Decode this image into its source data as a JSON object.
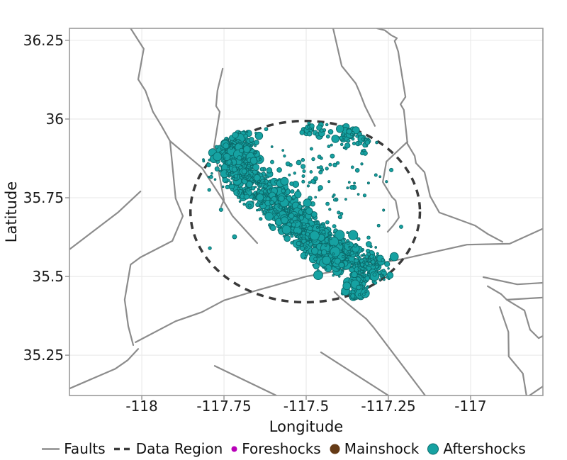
{
  "chart_data": {
    "type": "scatter",
    "title": "",
    "xlabel": "Longitude",
    "ylabel": "Latitude",
    "xlim": [
      -118.22,
      -116.78
    ],
    "ylim": [
      35.122,
      36.288
    ],
    "grid": true,
    "legend_position": "bottom",
    "xticks": {
      "values": [
        -118,
        -117.75,
        -117.5,
        -117.25,
        -117
      ],
      "labels": [
        "-118",
        "-117.75",
        "-117.5",
        "-117.25",
        "-117"
      ]
    },
    "yticks": {
      "values": [
        36.25,
        36,
        35.75,
        35.5,
        35.25
      ],
      "labels": [
        "36.25",
        "36",
        "35.75",
        "35.5",
        "35.25"
      ]
    },
    "styles": {
      "fault_color": "#8c8c8c",
      "fault_width": 2.2,
      "grid_color": "#ececec",
      "spine_color": "#9a9a9a",
      "region_color": "#3a3a3a",
      "aftershock_fill": "#16a2a2",
      "aftershock_stroke": "#0b6a6a",
      "foreshock_color": "#b800b8",
      "mainshock_color": "#653a16",
      "tick_label_color": "#1b1b1b"
    },
    "data_region": {
      "label": "Data Region",
      "center": [
        -117.503,
        35.706
      ],
      "radius_lon": 0.349,
      "radius_lat": 0.288,
      "dash": [
        10,
        8
      ],
      "stroke_width": 3.5
    },
    "faults": [
      {
        "id": "fault-1",
        "points": [
          [
            -118.034,
            36.288
          ],
          [
            -117.994,
            36.223
          ],
          [
            -118.011,
            36.126
          ],
          [
            -117.989,
            36.09
          ],
          [
            -117.966,
            36.023
          ],
          [
            -117.94,
            35.978
          ],
          [
            -117.914,
            35.93
          ],
          [
            -117.897,
            35.748
          ],
          [
            -117.875,
            35.692
          ],
          [
            -117.907,
            35.613
          ],
          [
            -118.004,
            35.561
          ],
          [
            -118.034,
            35.538
          ],
          [
            -118.052,
            35.426
          ],
          [
            -118.041,
            35.342
          ],
          [
            -118.026,
            35.282
          ]
        ]
      },
      {
        "id": "fault-2",
        "points": [
          [
            -117.914,
            35.93
          ],
          [
            -117.817,
            35.845
          ],
          [
            -117.752,
            35.741
          ],
          [
            -117.724,
            35.692
          ],
          [
            -117.649,
            35.606
          ]
        ]
      },
      {
        "id": "fault-3",
        "points": [
          [
            -117.754,
            36.16
          ],
          [
            -117.77,
            36.09
          ],
          [
            -117.774,
            36.041
          ],
          [
            -117.763,
            36.023
          ],
          [
            -117.78,
            35.912
          ],
          [
            -117.767,
            35.838
          ],
          [
            -117.75,
            35.743
          ],
          [
            -117.759,
            35.721
          ]
        ]
      },
      {
        "id": "fault-4",
        "points": [
          [
            -117.418,
            36.288
          ],
          [
            -117.392,
            36.169
          ],
          [
            -117.349,
            36.113
          ],
          [
            -117.338,
            36.086
          ],
          [
            -117.321,
            36.041
          ],
          [
            -117.291,
            35.978
          ]
        ]
      },
      {
        "id": "fault-5",
        "points": [
          [
            -117.284,
            36.288
          ],
          [
            -117.261,
            36.282
          ],
          [
            -117.241,
            36.266
          ],
          [
            -117.224,
            36.257
          ],
          [
            -117.231,
            36.248
          ],
          [
            -117.22,
            36.214
          ],
          [
            -117.216,
            36.187
          ],
          [
            -117.198,
            36.07
          ],
          [
            -117.213,
            36.047
          ],
          [
            -117.203,
            36.029
          ],
          [
            -117.194,
            35.944
          ],
          [
            -117.192,
            35.921
          ],
          [
            -117.17,
            35.883
          ],
          [
            -117.166,
            35.86
          ],
          [
            -117.14,
            35.831
          ],
          [
            -117.123,
            35.755
          ],
          [
            -117.095,
            35.703
          ],
          [
            -117.052,
            35.687
          ],
          [
            -116.987,
            35.662
          ],
          [
            -116.948,
            35.635
          ],
          [
            -116.903,
            35.61
          ]
        ]
      },
      {
        "id": "fault-6",
        "points": [
          [
            -117.192,
            35.928
          ],
          [
            -117.256,
            35.865
          ],
          [
            -117.267,
            35.8
          ],
          [
            -117.239,
            35.752
          ],
          [
            -117.228,
            35.741
          ],
          [
            -117.218,
            35.687
          ],
          [
            -117.235,
            35.662
          ],
          [
            -117.252,
            35.642
          ]
        ]
      },
      {
        "id": "fault-7",
        "points": [
          [
            -118.004,
            35.77
          ],
          [
            -118.073,
            35.703
          ],
          [
            -118.22,
            35.586
          ]
        ]
      },
      {
        "id": "fault-8",
        "points": [
          [
            -118.019,
            35.291
          ],
          [
            -117.897,
            35.358
          ],
          [
            -117.817,
            35.387
          ],
          [
            -117.75,
            35.424
          ],
          [
            -117.653,
            35.455
          ],
          [
            -117.5,
            35.5
          ],
          [
            -117.205,
            35.556
          ],
          [
            -117.011,
            35.601
          ],
          [
            -116.881,
            35.604
          ],
          [
            -116.782,
            35.651
          ]
        ]
      },
      {
        "id": "fault-9",
        "points": [
          [
            -118.011,
            35.27
          ],
          [
            -118.043,
            35.234
          ],
          [
            -118.08,
            35.207
          ],
          [
            -118.22,
            35.144
          ]
        ]
      },
      {
        "id": "fault-10",
        "points": [
          [
            -117.778,
            35.216
          ],
          [
            -117.591,
            35.122
          ]
        ]
      },
      {
        "id": "fault-11",
        "points": [
          [
            -117.414,
            35.451
          ],
          [
            -117.397,
            35.433
          ],
          [
            -117.317,
            35.365
          ],
          [
            -117.295,
            35.338
          ],
          [
            -117.138,
            35.122
          ]
        ]
      },
      {
        "id": "fault-12",
        "points": [
          [
            -117.455,
            35.259
          ],
          [
            -117.25,
            35.122
          ]
        ]
      },
      {
        "id": "fault-13",
        "points": [
          [
            -116.961,
            35.498
          ],
          [
            -116.858,
            35.475
          ],
          [
            -116.78,
            35.48
          ]
        ]
      },
      {
        "id": "fault-14",
        "points": [
          [
            -116.948,
            35.469
          ],
          [
            -116.907,
            35.444
          ],
          [
            -116.89,
            35.426
          ],
          [
            -116.78,
            35.433
          ]
        ]
      },
      {
        "id": "fault-15",
        "points": [
          [
            -116.89,
            35.426
          ],
          [
            -116.836,
            35.392
          ],
          [
            -116.819,
            35.331
          ],
          [
            -116.793,
            35.304
          ],
          [
            -116.78,
            35.311
          ]
        ]
      },
      {
        "id": "fault-16",
        "points": [
          [
            -116.911,
            35.403
          ],
          [
            -116.885,
            35.324
          ],
          [
            -116.884,
            35.246
          ],
          [
            -116.841,
            35.192
          ],
          [
            -116.83,
            35.122
          ]
        ]
      },
      {
        "id": "fault-17",
        "points": [
          [
            -116.78,
            35.151
          ],
          [
            -116.821,
            35.122
          ]
        ]
      }
    ],
    "aftershocks": {
      "seed": 42,
      "note": "dense NW-SE trending aftershock band inside the data region; rendered from these cluster parameters",
      "clusters": [
        {
          "lon": -117.437,
          "lat": 35.82,
          "sx": 0.103,
          "sy": 0.086,
          "n": 100,
          "rmin": 1.4,
          "rmax": 3.4,
          "pow": 1.6,
          "clip": 0.92
        },
        {
          "lon": -117.476,
          "lat": 35.966,
          "sx": 0.026,
          "sy": 0.014,
          "n": 28,
          "rmin": 1.8,
          "rmax": 5.5,
          "pow": 1.8,
          "clip": 1.08
        },
        {
          "lon": -117.371,
          "lat": 35.95,
          "sx": 0.019,
          "sy": 0.014,
          "n": 26,
          "rmin": 1.8,
          "rmax": 5.5,
          "pow": 1.8,
          "clip": 1.08
        },
        {
          "lon": -117.323,
          "lat": 35.932,
          "sx": 0.013,
          "sy": 0.011,
          "n": 15,
          "rmin": 1.8,
          "rmax": 5.0,
          "pow": 1.8,
          "clip": 1.08
        },
        {
          "lon": -117.677,
          "lat": 35.797,
          "sx": 0.028,
          "sy": 0.029,
          "n": 170,
          "rmin": 1.3,
          "rmax": 6.0,
          "pow": 3.0,
          "clip": 1.1
        },
        {
          "lon": -117.608,
          "lat": 35.748,
          "sx": 0.028,
          "sy": 0.027,
          "n": 170,
          "rmin": 1.3,
          "rmax": 6.0,
          "pow": 2.8,
          "clip": 1.1
        },
        {
          "lon": -117.558,
          "lat": 35.703,
          "sx": 0.028,
          "sy": 0.027,
          "n": 175,
          "rmin": 1.3,
          "rmax": 6.5,
          "pow": 2.8,
          "clip": 1.1
        },
        {
          "lon": -117.509,
          "lat": 35.653,
          "sx": 0.028,
          "sy": 0.025,
          "n": 175,
          "rmin": 1.3,
          "rmax": 6.5,
          "pow": 2.8,
          "clip": 1.1
        },
        {
          "lon": -117.461,
          "lat": 35.613,
          "sx": 0.028,
          "sy": 0.025,
          "n": 165,
          "rmin": 1.3,
          "rmax": 6.5,
          "pow": 2.8,
          "clip": 1.1
        },
        {
          "lon": -117.397,
          "lat": 35.568,
          "sx": 0.037,
          "sy": 0.029,
          "n": 250,
          "rmin": 1.3,
          "rmax": 7.0,
          "pow": 2.8,
          "clip": 1.1
        },
        {
          "lon": -117.31,
          "lat": 35.523,
          "sx": 0.03,
          "sy": 0.025,
          "n": 135,
          "rmin": 1.3,
          "rmax": 6.5,
          "pow": 2.6,
          "clip": 1.1
        },
        {
          "lon": -117.343,
          "lat": 35.46,
          "sx": 0.017,
          "sy": 0.027,
          "n": 60,
          "rmin": 1.6,
          "rmax": 7.0,
          "pow": 2.2,
          "clip": 1.1
        },
        {
          "lon": -117.713,
          "lat": 35.89,
          "sx": 0.032,
          "sy": 0.038,
          "n": 460,
          "rmin": 1.3,
          "rmax": 6.5,
          "pow": 3.0,
          "clip": 1.12
        }
      ],
      "extra_points": [
        [
          -117.795,
          35.775,
          2.2
        ],
        [
          -117.759,
          35.712,
          2.6
        ],
        [
          -117.672,
          35.725,
          2.2
        ],
        [
          -117.718,
          35.626,
          3.0
        ],
        [
          -117.793,
          35.59,
          2.2
        ],
        [
          -117.241,
          35.838,
          2.6
        ]
      ]
    },
    "foreshocks": {
      "note": "in legend only; markers hidden beneath aftershock cloud"
    },
    "mainshock": {
      "note": "in legend only; marker hidden beneath aftershock cloud"
    }
  },
  "legend": {
    "items": [
      {
        "key": "faults",
        "label": "Faults",
        "marker": "line",
        "color": "#8c8c8c"
      },
      {
        "key": "data-region",
        "label": "Data Region",
        "marker": "dashed-line",
        "color": "#3a3a3a"
      },
      {
        "key": "foreshocks",
        "label": "Foreshocks",
        "marker": "circle",
        "color": "#b800b8",
        "radius": 4
      },
      {
        "key": "mainshock",
        "label": "Mainshock",
        "marker": "circle",
        "color": "#653a16",
        "radius": 7
      },
      {
        "key": "aftershocks",
        "label": "Aftershocks",
        "marker": "circle",
        "color": "#16a2a2",
        "stroke": "#0b6a6a",
        "radius": 7.5
      }
    ]
  }
}
